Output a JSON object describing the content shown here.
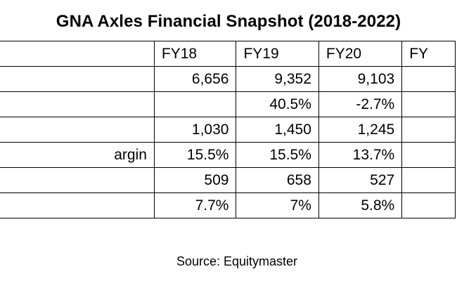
{
  "title": "GNA Axles Financial Snapshot (2018-2022)",
  "table": {
    "headers": [
      "",
      "FY18",
      "FY19",
      "FY20",
      "FY"
    ],
    "rows": [
      {
        "label": "",
        "values": [
          "6,656",
          "9,352",
          "9,103",
          ""
        ]
      },
      {
        "label": "",
        "values": [
          "",
          "40.5%",
          "-2.7%",
          ""
        ]
      },
      {
        "label": "",
        "values": [
          "1,030",
          "1,450",
          "1,245",
          ""
        ]
      },
      {
        "label": "argin",
        "values": [
          "15.5%",
          "15.5%",
          "13.7%",
          ""
        ]
      },
      {
        "label": "",
        "values": [
          "509",
          "658",
          "527",
          ""
        ]
      },
      {
        "label": "",
        "values": [
          "7.7%",
          "7%",
          "5.8%",
          ""
        ]
      }
    ]
  },
  "source": "Source: Equitymaster"
}
